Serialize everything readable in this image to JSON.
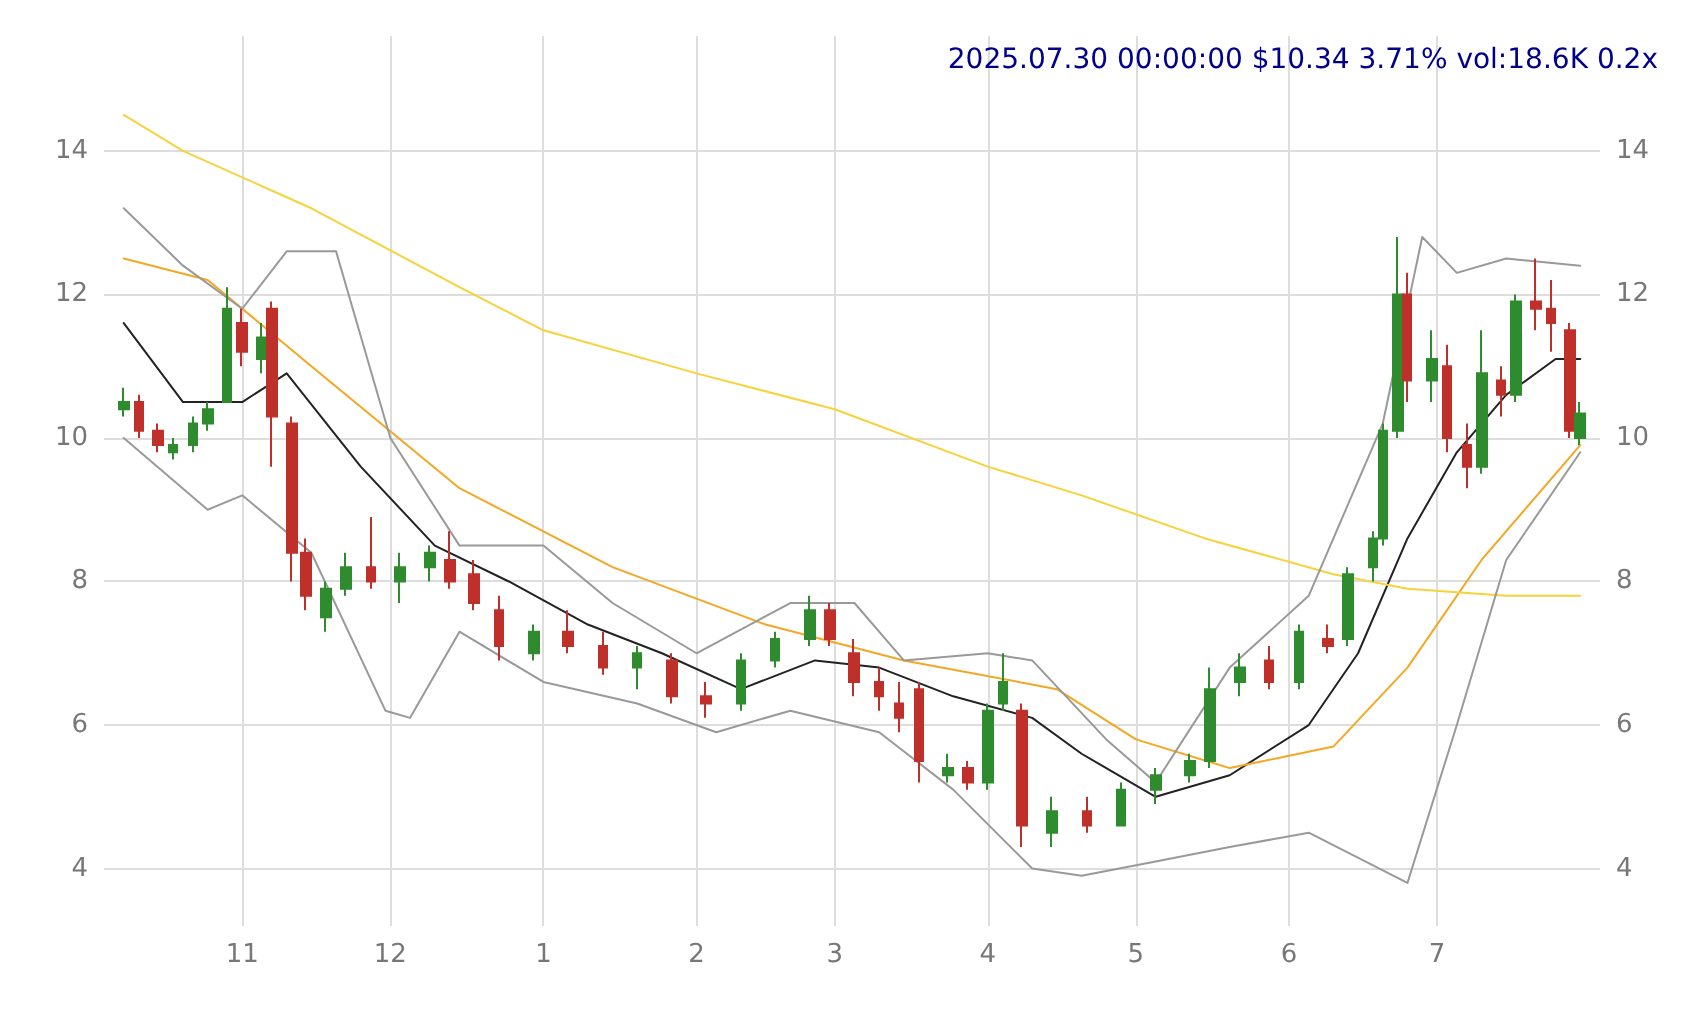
{
  "chart_data": {
    "type": "candlestick",
    "title": "2025.07.30 00:00:00 $10.34 3.71% vol:18.6K 0.2x",
    "x": [
      "2024-10-08",
      "2024-10-11",
      "2024-10-15",
      "2024-10-18",
      "2024-10-22",
      "2024-10-25",
      "2024-10-29",
      "2024-11-01",
      "2024-11-05",
      "2024-11-07",
      "2024-11-11",
      "2024-11-14",
      "2024-11-18",
      "2024-11-22",
      "2024-11-27",
      "2024-12-03",
      "2024-12-09",
      "2024-12-13",
      "2024-12-18",
      "2024-12-23",
      "2024-12-30",
      "2025-01-06",
      "2025-01-13",
      "2025-01-20",
      "2025-01-27",
      "2025-02-03",
      "2025-02-10",
      "2025-02-17",
      "2025-02-24",
      "2025-02-28",
      "2025-03-05",
      "2025-03-10",
      "2025-03-14",
      "2025-03-18",
      "2025-03-24",
      "2025-03-28",
      "2025-04-01",
      "2025-04-04",
      "2025-04-08",
      "2025-04-14",
      "2025-04-21",
      "2025-04-28",
      "2025-05-05",
      "2025-05-12",
      "2025-05-16",
      "2025-05-22",
      "2025-05-28",
      "2025-06-03",
      "2025-06-09",
      "2025-06-13",
      "2025-06-18",
      "2025-06-20",
      "2025-06-23",
      "2025-06-25",
      "2025-06-30",
      "2025-07-03",
      "2025-07-07",
      "2025-07-10",
      "2025-07-14",
      "2025-07-17",
      "2025-07-21",
      "2025-07-24",
      "2025-07-28",
      "2025-07-30"
    ],
    "ohlc": [
      [
        10.4,
        10.7,
        10.3,
        10.5
      ],
      [
        10.5,
        10.6,
        10.0,
        10.1
      ],
      [
        10.1,
        10.2,
        9.8,
        9.9
      ],
      [
        9.8,
        10.0,
        9.7,
        9.9
      ],
      [
        9.9,
        10.3,
        9.8,
        10.2
      ],
      [
        10.2,
        10.5,
        10.1,
        10.4
      ],
      [
        10.5,
        12.1,
        10.5,
        11.8
      ],
      [
        11.6,
        11.8,
        11.0,
        11.2
      ],
      [
        11.1,
        11.6,
        10.9,
        11.4
      ],
      [
        11.8,
        11.9,
        9.6,
        10.3
      ],
      [
        10.2,
        10.3,
        8.0,
        8.4
      ],
      [
        8.4,
        8.6,
        7.6,
        7.8
      ],
      [
        7.5,
        8.0,
        7.3,
        7.9
      ],
      [
        7.9,
        8.4,
        7.8,
        8.2
      ],
      [
        8.2,
        8.9,
        7.9,
        8.0
      ],
      [
        8.0,
        8.4,
        7.7,
        8.2
      ],
      [
        8.2,
        8.5,
        8.0,
        8.4
      ],
      [
        8.3,
        8.7,
        7.9,
        8.0
      ],
      [
        8.1,
        8.3,
        7.6,
        7.7
      ],
      [
        7.6,
        7.8,
        6.9,
        7.1
      ],
      [
        7.0,
        7.4,
        6.9,
        7.3
      ],
      [
        7.3,
        7.6,
        7.0,
        7.1
      ],
      [
        7.1,
        7.3,
        6.7,
        6.8
      ],
      [
        6.8,
        7.1,
        6.5,
        7.0
      ],
      [
        6.9,
        7.0,
        6.3,
        6.4
      ],
      [
        6.4,
        6.6,
        6.1,
        6.3
      ],
      [
        6.3,
        7.0,
        6.2,
        6.9
      ],
      [
        6.9,
        7.3,
        6.8,
        7.2
      ],
      [
        7.2,
        7.8,
        7.1,
        7.6
      ],
      [
        7.6,
        7.7,
        7.1,
        7.2
      ],
      [
        7.0,
        7.2,
        6.4,
        6.6
      ],
      [
        6.6,
        6.8,
        6.2,
        6.4
      ],
      [
        6.3,
        6.6,
        5.9,
        6.1
      ],
      [
        6.5,
        6.6,
        5.2,
        5.5
      ],
      [
        5.3,
        5.6,
        5.2,
        5.4
      ],
      [
        5.4,
        5.5,
        5.1,
        5.2
      ],
      [
        5.2,
        6.3,
        5.1,
        6.2
      ],
      [
        6.3,
        7.0,
        6.2,
        6.6
      ],
      [
        6.2,
        6.3,
        4.3,
        4.6
      ],
      [
        4.5,
        5.0,
        4.3,
        4.8
      ],
      [
        4.8,
        5.0,
        4.5,
        4.6
      ],
      [
        4.6,
        5.2,
        4.6,
        5.1
      ],
      [
        5.1,
        5.4,
        4.9,
        5.3
      ],
      [
        5.3,
        5.6,
        5.2,
        5.5
      ],
      [
        5.5,
        6.8,
        5.4,
        6.5
      ],
      [
        6.6,
        7.0,
        6.4,
        6.8
      ],
      [
        6.9,
        7.1,
        6.5,
        6.6
      ],
      [
        6.6,
        7.4,
        6.5,
        7.3
      ],
      [
        7.2,
        7.4,
        7.0,
        7.1
      ],
      [
        7.2,
        8.2,
        7.1,
        8.1
      ],
      [
        8.2,
        8.7,
        8.0,
        8.6
      ],
      [
        8.6,
        10.2,
        8.5,
        10.1
      ],
      [
        10.1,
        12.8,
        10.0,
        12.0
      ],
      [
        12.0,
        12.3,
        10.5,
        10.8
      ],
      [
        10.8,
        11.5,
        10.5,
        11.1
      ],
      [
        11.0,
        11.3,
        9.8,
        10.0
      ],
      [
        9.9,
        10.2,
        9.3,
        9.6
      ],
      [
        9.6,
        11.5,
        9.5,
        10.9
      ],
      [
        10.8,
        11.0,
        10.3,
        10.6
      ],
      [
        10.6,
        12.0,
        10.5,
        11.9
      ],
      [
        11.9,
        12.5,
        11.5,
        11.8
      ],
      [
        11.8,
        12.2,
        11.2,
        11.6
      ],
      [
        11.5,
        11.6,
        10.0,
        10.1
      ],
      [
        10.0,
        10.5,
        9.9,
        10.34
      ]
    ],
    "colors": [
      "#2e8b2e",
      "#c0302b",
      "#c0302b",
      "#2e8b2e",
      "#2e8b2e",
      "#2e8b2e",
      "#2e8b2e",
      "#c0302b",
      "#2e8b2e",
      "#c0302b",
      "#c0302b",
      "#c0302b",
      "#2e8b2e",
      "#2e8b2e",
      "#c0302b",
      "#2e8b2e",
      "#2e8b2e",
      "#c0302b",
      "#c0302b",
      "#c0302b",
      "#2e8b2e",
      "#c0302b",
      "#c0302b",
      "#2e8b2e",
      "#c0302b",
      "#c0302b",
      "#2e8b2e",
      "#2e8b2e",
      "#2e8b2e",
      "#c0302b",
      "#c0302b",
      "#c0302b",
      "#c0302b",
      "#c0302b",
      "#2e8b2e",
      "#c0302b",
      "#2e8b2e",
      "#2e8b2e",
      "#c0302b",
      "#2e8b2e",
      "#c0302b",
      "#2e8b2e",
      "#2e8b2e",
      "#2e8b2e",
      "#2e8b2e",
      "#2e8b2e",
      "#c0302b",
      "#2e8b2e",
      "#c0302b",
      "#2e8b2e",
      "#2e8b2e",
      "#2e8b2e",
      "#2e8b2e",
      "#c0302b",
      "#2e8b2e",
      "#c0302b",
      "#c0302b",
      "#2e8b2e",
      "#c0302b",
      "#2e8b2e",
      "#c0302b",
      "#c0302b",
      "#c0302b",
      "#2e8b2e"
    ],
    "series": [
      {
        "type": "line",
        "color": "#222222",
        "x": [
          "2024-10-08",
          "2024-10-20",
          "2024-11-01",
          "2024-11-10",
          "2024-11-25",
          "2024-12-10",
          "2024-12-25",
          "2025-01-10",
          "2025-01-25",
          "2025-02-10",
          "2025-02-25",
          "2025-03-10",
          "2025-03-25",
          "2025-04-10",
          "2025-04-20",
          "2025-05-05",
          "2025-05-20",
          "2025-06-05",
          "2025-06-15",
          "2025-06-25",
          "2025-07-05",
          "2025-07-15",
          "2025-07-25",
          "2025-07-30"
        ],
        "values": [
          11.6,
          10.5,
          10.5,
          10.9,
          9.6,
          8.5,
          8.0,
          7.4,
          7.0,
          6.5,
          6.9,
          6.8,
          6.4,
          6.1,
          5.6,
          5.0,
          5.3,
          6.0,
          7.0,
          8.6,
          9.8,
          10.6,
          11.1,
          11.1
        ]
      },
      {
        "type": "line",
        "color": "#f5a623",
        "x": [
          "2024-10-08",
          "2024-10-25",
          "2024-11-15",
          "2024-12-15",
          "2025-01-15",
          "2025-02-15",
          "2025-03-15",
          "2025-04-15",
          "2025-05-01",
          "2025-05-20",
          "2025-06-10",
          "2025-06-25",
          "2025-07-10",
          "2025-07-30"
        ],
        "values": [
          12.5,
          12.2,
          11.0,
          9.3,
          8.2,
          7.4,
          6.9,
          6.5,
          5.8,
          5.4,
          5.7,
          6.8,
          8.3,
          9.9
        ]
      },
      {
        "type": "line",
        "color": "#f7d23c",
        "x": [
          "2024-10-08",
          "2024-10-20",
          "2024-11-15",
          "2024-12-15",
          "2025-01-01",
          "2025-02-01",
          "2025-03-01",
          "2025-04-01",
          "2025-04-20",
          "2025-05-15",
          "2025-06-10",
          "2025-06-25",
          "2025-07-15",
          "2025-07-30"
        ],
        "values": [
          14.5,
          14.0,
          13.2,
          12.1,
          11.5,
          10.9,
          10.4,
          9.6,
          9.2,
          8.6,
          8.1,
          7.9,
          7.8,
          7.8
        ]
      },
      {
        "type": "line",
        "color": "#999999",
        "x": [
          "2024-10-08",
          "2024-10-20",
          "2024-11-01",
          "2024-11-10",
          "2024-11-20",
          "2024-12-01",
          "2024-12-15",
          "2025-01-01",
          "2025-01-15",
          "2025-02-01",
          "2025-02-20",
          "2025-03-05",
          "2025-03-15",
          "2025-04-01",
          "2025-04-10",
          "2025-04-25",
          "2025-05-05",
          "2025-05-20",
          "2025-06-05",
          "2025-06-20",
          "2025-06-28",
          "2025-07-05",
          "2025-07-15",
          "2025-07-30"
        ],
        "values": [
          13.2,
          12.4,
          11.8,
          12.6,
          12.6,
          10.0,
          8.5,
          8.5,
          7.7,
          7.0,
          7.7,
          7.7,
          6.9,
          7.0,
          6.9,
          5.8,
          5.2,
          6.8,
          7.8,
          10.2,
          12.8,
          12.3,
          12.5,
          12.4
        ]
      },
      {
        "type": "line",
        "color": "#999999",
        "x": [
          "2024-10-08",
          "2024-10-25",
          "2024-11-01",
          "2024-11-15",
          "2024-11-30",
          "2024-12-05",
          "2024-12-15",
          "2025-01-01",
          "2025-01-20",
          "2025-02-05",
          "2025-02-20",
          "2025-03-10",
          "2025-03-25",
          "2025-04-10",
          "2025-04-20",
          "2025-05-05",
          "2025-05-20",
          "2025-06-05",
          "2025-06-25",
          "2025-07-05",
          "2025-07-15",
          "2025-07-30"
        ],
        "values": [
          10.0,
          9.0,
          9.2,
          8.4,
          6.2,
          6.1,
          7.3,
          6.6,
          6.3,
          5.9,
          6.2,
          5.9,
          5.1,
          4.0,
          3.9,
          4.1,
          4.3,
          4.5,
          3.8,
          6.0,
          8.3,
          9.8
        ]
      }
    ],
    "xlim": [
      "2024-10-04",
      "2025-08-03"
    ],
    "xticks": [
      {
        "value": "2024-11-01",
        "label": "11"
      },
      {
        "value": "2024-12-01",
        "label": "12"
      },
      {
        "value": "2025-01-01",
        "label": "1"
      },
      {
        "value": "2025-02-01",
        "label": "2"
      },
      {
        "value": "2025-03-01",
        "label": "3"
      },
      {
        "value": "2025-04-01",
        "label": "4"
      },
      {
        "value": "2025-05-01",
        "label": "5"
      },
      {
        "value": "2025-06-01",
        "label": "6"
      },
      {
        "value": "2025-07-01",
        "label": "7"
      }
    ],
    "ylim": [
      3.2,
      15.6
    ],
    "yticks": [
      4,
      6,
      8,
      10,
      12,
      14
    ],
    "y2lim": [
      3.2,
      15.6
    ],
    "y2ticks": [
      4,
      6,
      8,
      10,
      12,
      14
    ],
    "grid": true,
    "marker": "none",
    "line_style": "solid"
  }
}
